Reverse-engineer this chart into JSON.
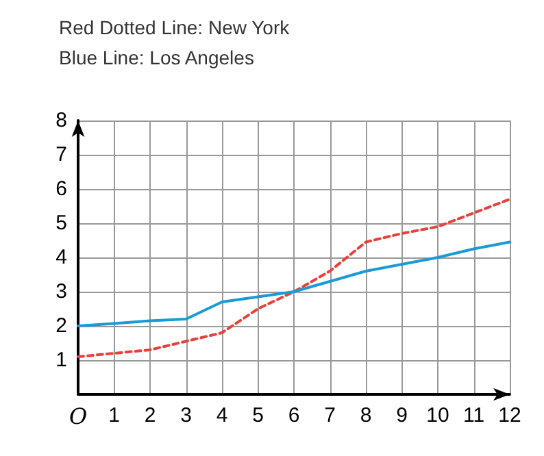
{
  "chart_data": {
    "type": "line",
    "title": "Red Dotted Line: New York",
    "subtitle": "Blue Line: Los Angeles",
    "x": [
      0,
      1,
      2,
      3,
      4,
      5,
      6,
      7,
      8,
      9,
      10,
      11,
      12
    ],
    "series": [
      {
        "color": "#e8403a",
        "line_style": "dashed",
        "values": [
          1.1,
          1.2,
          1.3,
          1.55,
          1.8,
          2.5,
          3,
          3.6,
          4.45,
          4.7,
          4.9,
          5.3,
          5.7
        ]
      },
      {
        "color": "#1a9ad6",
        "line_style": "solid",
        "values": [
          2,
          2.07,
          2.15,
          2.2,
          2.7,
          2.85,
          3,
          3.3,
          3.6,
          3.8,
          4.0,
          4.25,
          4.45
        ]
      }
    ],
    "xlim": [
      0,
      12
    ],
    "ylim": [
      0,
      8
    ],
    "xticks": [
      {
        "value": 0,
        "label": "O"
      },
      1,
      2,
      3,
      4,
      5,
      6,
      7,
      8,
      9,
      10,
      11,
      12
    ],
    "yticks": [
      {
        "value": 0,
        "label": null
      },
      1,
      2,
      3,
      4,
      5,
      6,
      7,
      8
    ],
    "grid": true,
    "marker": "none"
  }
}
